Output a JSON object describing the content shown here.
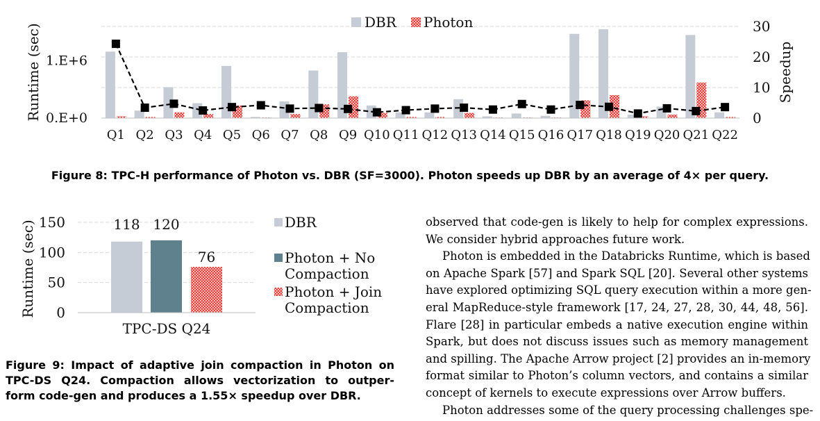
{
  "figure8": {
    "caption": "Figure 8: TPC-H performance of Photon vs. DBR (SF=3000). Photon speeds up DBR by an average of 4× per query.",
    "chart_data": {
      "type": "bar",
      "categories": [
        "Q1",
        "Q2",
        "Q3",
        "Q4",
        "Q5",
        "Q6",
        "Q7",
        "Q8",
        "Q9",
        "Q10",
        "Q11",
        "Q12",
        "Q13",
        "Q14",
        "Q15",
        "Q16",
        "Q17",
        "Q18",
        "Q19",
        "Q20",
        "Q21",
        "Q22"
      ],
      "ylabel": "Runtime (sec)",
      "y2label": "Speedup",
      "yticks": [
        "0.E+0",
        "1.E+6"
      ],
      "y2ticks": [
        "0",
        "10",
        "20",
        "30"
      ],
      "y2lim": [
        0,
        30
      ],
      "legend": [
        "DBR",
        "Photon"
      ],
      "legend_position": "top-center",
      "grid": true,
      "series": [
        {
          "name": "DBR",
          "type": "bar",
          "color": "#c5ccd5",
          "values": [
            1160000.0,
            130000.0,
            540000.0,
            260000.0,
            910000.0,
            20000.0,
            290000.0,
            830000.0,
            1150000.0,
            220000.0,
            100000.0,
            100000.0,
            330000.0,
            30000.0,
            80000.0,
            40000.0,
            1470000.0,
            1550000.0,
            60000.0,
            200000.0,
            1450000.0,
            100000.0
          ]
        },
        {
          "name": "Photon",
          "type": "bar",
          "color": "#e8413c",
          "values": [
            30000.0,
            20000.0,
            100000.0,
            70000.0,
            220000.0,
            10000.0,
            70000.0,
            240000.0,
            380000.0,
            90000.0,
            20000.0,
            20000.0,
            90000.0,
            10000.0,
            10000.0,
            10000.0,
            310000.0,
            400000.0,
            30000.0,
            60000.0,
            620000.0,
            20000.0
          ]
        },
        {
          "name": "Speedup",
          "type": "line",
          "axis": "right",
          "color": "#000000",
          "values": [
            24.3,
            3.4,
            4.7,
            2.5,
            3.6,
            4.2,
            3.1,
            3.3,
            3.0,
            1.9,
            2.6,
            3.1,
            3.4,
            2.8,
            4.6,
            2.8,
            4.3,
            3.7,
            1.5,
            3.2,
            2.3,
            3.6
          ]
        }
      ]
    }
  },
  "figure9": {
    "caption_lines": [
      "Figure 9: Impact of adaptive join compaction in Photon on",
      "TPC-DS Q24. Compaction allows vectorization to outper-",
      "form code-gen and produces a 1.55× speedup over DBR."
    ],
    "chart_data": {
      "type": "bar",
      "categories": [
        "TPC-DS Q24"
      ],
      "ylabel": "Runtime (sec)",
      "ylim": [
        0,
        150
      ],
      "yticks": [
        "0",
        "50",
        "100",
        "150"
      ],
      "grid": true,
      "legend_position": "right",
      "series": [
        {
          "legend_lines": [
            "DBR"
          ],
          "value": 118,
          "label": "118",
          "color": "#c5ccd5"
        },
        {
          "legend_lines": [
            "Photon + No",
            "Compaction"
          ],
          "value": 120,
          "label": "120",
          "color": "#5e818d"
        },
        {
          "legend_lines": [
            "Photon + Join",
            "Compaction"
          ],
          "value": 76,
          "label": "76",
          "color": "#e8413c"
        }
      ]
    }
  },
  "body_text": [
    {
      "text": "observed that code-gen is likely to help for complex expressions.",
      "align": "j"
    },
    {
      "text": "We consider hybrid approaches future work.",
      "align": "l"
    },
    {
      "text": "Photon is embedded in the Databricks Runtime, which is based",
      "align": "j",
      "indent": true
    },
    {
      "text": "on Apache Spark [57] and Spark SQL [20]. Several other systems",
      "align": "j"
    },
    {
      "text": "have explored optimizing SQL query execution within a more gen-",
      "align": "j"
    },
    {
      "text": "eral MapReduce-style framework [17, 24, 27, 28, 30, 44, 48, 56].",
      "align": "j"
    },
    {
      "text": "Flare [28] in particular embeds a native execution engine within",
      "align": "j"
    },
    {
      "text": "Spark, but does not discuss issues such as memory management",
      "align": "j"
    },
    {
      "text": "and spilling. The Apache Arrow project [2] provides an in-memory",
      "align": "j"
    },
    {
      "text": "format similar to Photon’s column vectors, and contains a similar",
      "align": "j"
    },
    {
      "text": "concept of kernels to execute expressions over Arrow buffers.",
      "align": "l"
    },
    {
      "text": "Photon addresses some of the query processing challenges spe-",
      "align": "j",
      "indent": true
    }
  ]
}
